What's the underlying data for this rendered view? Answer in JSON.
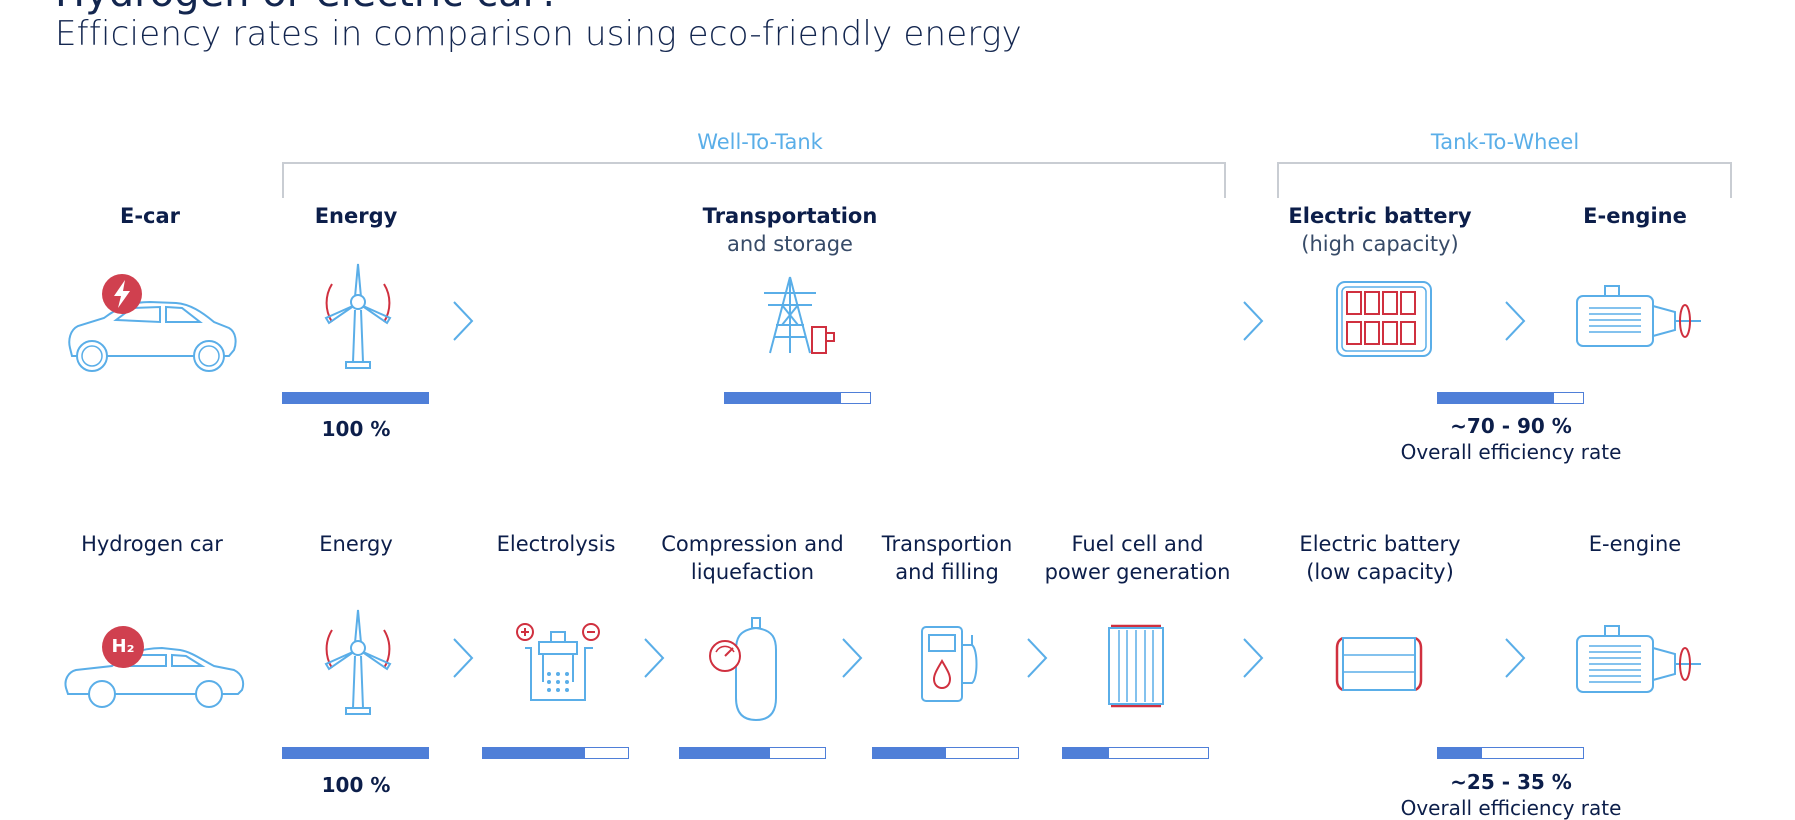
{
  "header": {
    "title_partial": "Hydrogen or electric car?",
    "subtitle": "Efficiency rates in comparison using eco-friendly energy"
  },
  "phases": {
    "well_to_tank": "Well-To-Tank",
    "tank_to_wheel": "Tank-To-Wheel"
  },
  "ecar": {
    "vehicle": "E-car",
    "badge_icon": "lightning-icon",
    "stages": [
      {
        "bold": "Energy",
        "sub": "",
        "icon": "wind-turbine-icon",
        "efficiency": 1.0
      },
      {
        "bold": "Transportation",
        "sub": "and storage",
        "icon": "power-pylon-icon",
        "efficiency": 0.8
      },
      {
        "bold": "Electric battery",
        "sub": "(high capacity)",
        "icon": "battery-high-capacity-icon"
      },
      {
        "bold": "E-engine",
        "sub": "",
        "icon": "electric-motor-icon",
        "efficiency": 0.8
      }
    ],
    "start_pct": "100 %",
    "result_pct": "~70 - 90 %",
    "result_note": "Overall efficiency rate"
  },
  "hcar": {
    "vehicle": "Hydrogen car",
    "badge_text": "H₂",
    "stages": [
      {
        "line1": "Energy",
        "line2": "",
        "icon": "wind-turbine-icon",
        "efficiency": 1.0
      },
      {
        "line1": "Electrolysis",
        "line2": "",
        "icon": "electrolysis-icon",
        "efficiency": 0.7
      },
      {
        "line1": "Compression and",
        "line2": "liquefaction",
        "icon": "gas-tank-icon",
        "efficiency": 0.62
      },
      {
        "line1": "Transportion",
        "line2": "and filling",
        "icon": "fuel-pump-icon",
        "efficiency": 0.5
      },
      {
        "line1": "Fuel cell and",
        "line2": "power generation",
        "icon": "fuel-cell-icon",
        "efficiency": 0.32
      },
      {
        "line1": "Electric battery",
        "line2": "(low capacity)",
        "icon": "battery-low-capacity-icon"
      },
      {
        "line1": "E-engine",
        "line2": "",
        "icon": "electric-motor-icon",
        "efficiency": 0.3
      }
    ],
    "start_pct": "100 %",
    "result_pct": "~25 - 35 %",
    "result_note": "Overall efficiency rate"
  },
  "colors": {
    "icon_blue": "#5aaee8",
    "icon_red": "#d0303f",
    "bar_blue": "#4f7fd8",
    "text_navy": "#0c1e4a"
  }
}
